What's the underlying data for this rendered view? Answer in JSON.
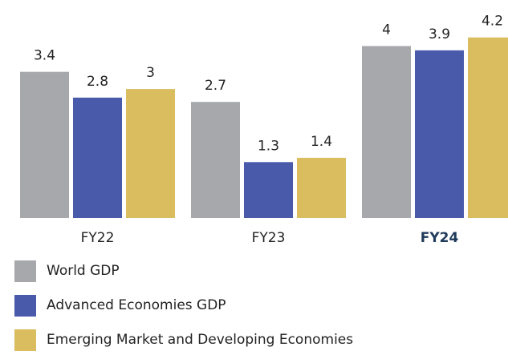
{
  "chart_data": {
    "type": "bar",
    "categories": [
      "FY22",
      "FY23",
      "FY24"
    ],
    "series": [
      {
        "name": "World GDP",
        "color": "#a7a8ab",
        "values": [
          3.4,
          2.7,
          4
        ]
      },
      {
        "name": "Advanced Economies GDP",
        "color": "#4a5aab",
        "values": [
          2.8,
          1.3,
          3.9
        ]
      },
      {
        "name": "Emerging Market and Developing Economies",
        "color": "#d9bd5e",
        "values": [
          3,
          1.4,
          4.2
        ]
      }
    ],
    "ylim": [
      0,
      4.4
    ],
    "highlight_index": 2,
    "legend": "bottom-left"
  }
}
